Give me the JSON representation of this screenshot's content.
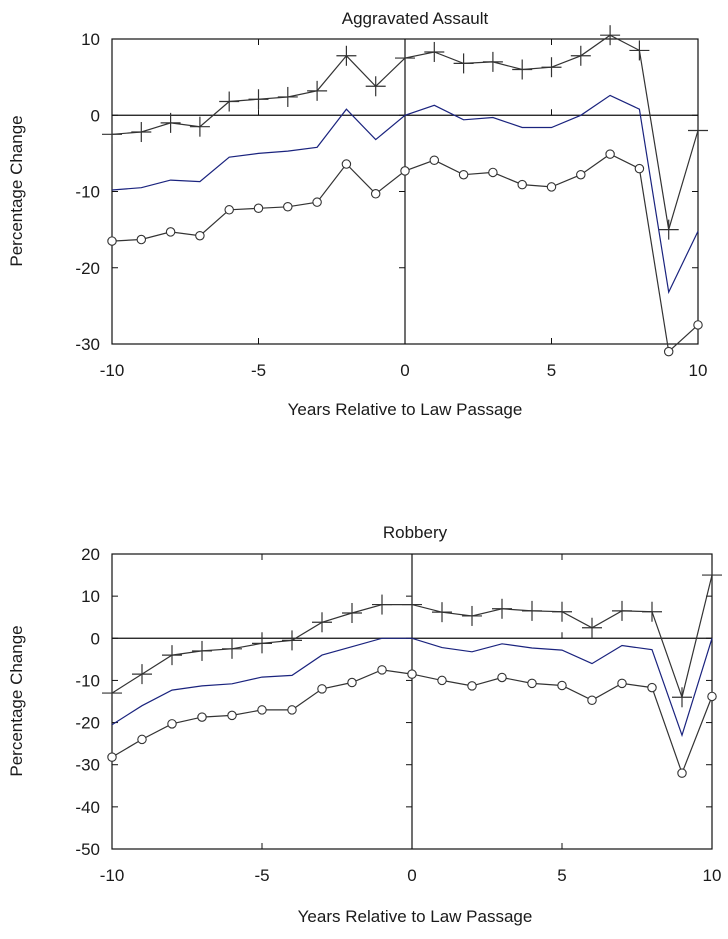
{
  "charts": [
    {
      "type": "line",
      "title": "Aggravated Assault",
      "xlabel": "Years Relative to Law Passage",
      "ylabel": "Percentage Change",
      "xlim": [
        -10,
        10
      ],
      "ylim": [
        -30,
        10
      ],
      "xticks": [
        -10,
        -5,
        0,
        5,
        10
      ],
      "yticks": [
        -30,
        -20,
        -10,
        0,
        10
      ],
      "grid": false,
      "colors": {
        "estimate": "#1a237e",
        "bounds": "#333333",
        "axes": "#111111"
      },
      "x": [
        -10,
        -9,
        -8,
        -7,
        -6,
        -5,
        -4,
        -3,
        -2,
        -1,
        0,
        1,
        2,
        3,
        4,
        5,
        6,
        7,
        8,
        9,
        10
      ],
      "series": [
        {
          "marker": "plus",
          "values": [
            -2.5,
            -2.2,
            -1.0,
            -1.5,
            1.8,
            2.1,
            2.4,
            3.2,
            7.8,
            3.8,
            7.5,
            8.3,
            6.8,
            7.0,
            6.0,
            6.3,
            7.8,
            10.5,
            8.5,
            -15.0,
            -2.0
          ]
        },
        {
          "marker": "none",
          "values": [
            -9.8,
            -9.5,
            -8.5,
            -8.7,
            -5.5,
            -5.0,
            -4.7,
            -4.2,
            0.8,
            -3.2,
            0.0,
            1.3,
            -0.6,
            -0.3,
            -1.6,
            -1.6,
            0.0,
            2.6,
            0.8,
            -23.2,
            -15.2
          ]
        },
        {
          "marker": "circle",
          "values": [
            -16.5,
            -16.3,
            -15.3,
            -15.8,
            -12.4,
            -12.2,
            -12.0,
            -11.4,
            -6.4,
            -10.3,
            -7.3,
            -5.9,
            -7.8,
            -7.5,
            -9.1,
            -9.4,
            -7.8,
            -5.1,
            -7.0,
            -31.0,
            -27.5
          ]
        }
      ]
    },
    {
      "type": "line",
      "title": "Robbery",
      "xlabel": "Years Relative to Law Passage",
      "ylabel": "Percentage Change",
      "xlim": [
        -10,
        10
      ],
      "ylim": [
        -50,
        20
      ],
      "xticks": [
        -10,
        -5,
        0,
        5,
        10
      ],
      "yticks": [
        -50,
        -40,
        -30,
        -20,
        -10,
        0,
        10,
        20
      ],
      "grid": false,
      "colors": {
        "estimate": "#1a237e",
        "bounds": "#333333",
        "axes": "#111111"
      },
      "x": [
        -10,
        -9,
        -8,
        -7,
        -6,
        -5,
        -4,
        -3,
        -2,
        -1,
        0,
        1,
        2,
        3,
        4,
        5,
        6,
        7,
        8,
        9,
        10
      ],
      "series": [
        {
          "marker": "plus",
          "values": [
            -13.0,
            -8.5,
            -4.0,
            -3.0,
            -2.5,
            -1.2,
            -0.5,
            3.8,
            6.0,
            8.0,
            8.0,
            6.2,
            5.3,
            7.0,
            6.5,
            6.3,
            2.5,
            6.5,
            6.3,
            -14.0,
            15.0
          ]
        },
        {
          "marker": "none",
          "values": [
            -20.5,
            -16.0,
            -12.3,
            -11.3,
            -10.8,
            -9.2,
            -8.8,
            -4.0,
            -2.0,
            0.0,
            0.0,
            -2.2,
            -3.2,
            -1.3,
            -2.3,
            -2.8,
            -6.0,
            -1.7,
            -2.7,
            -23.0,
            0.0
          ]
        },
        {
          "marker": "circle",
          "values": [
            -28.2,
            -24.0,
            -20.3,
            -18.7,
            -18.3,
            -17.0,
            -17.0,
            -12.0,
            -10.5,
            -7.5,
            -8.5,
            -10.0,
            -11.3,
            -9.3,
            -10.7,
            -11.2,
            -14.7,
            -10.7,
            -11.7,
            -32.0,
            -13.8
          ]
        }
      ]
    }
  ]
}
